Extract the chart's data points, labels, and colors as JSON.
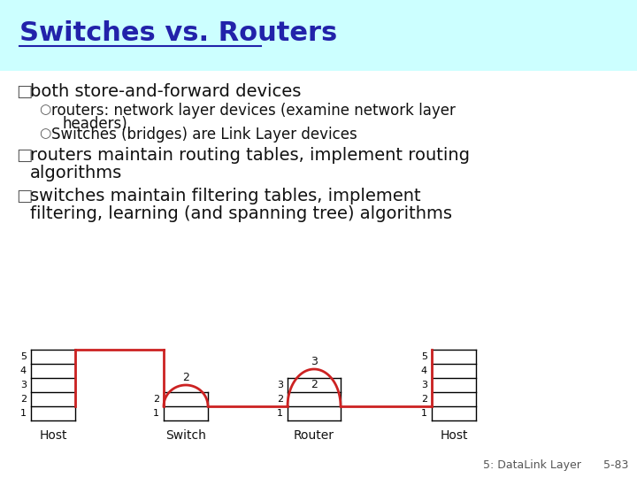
{
  "title": "Switches vs. Routers",
  "title_color": "#2222AA",
  "title_bg_color": "#CCFFFF",
  "bg_color": "#FFFFFF",
  "text_color": "#111111",
  "bullet_color": "#555555",
  "bullet1": "both store-and-forward devices",
  "sub1a": "routers: network layer devices (examine network layer",
  "sub1b": "        headers)",
  "sub2": "Switches (bridges) are Link Layer devices",
  "bullet2a": "routers maintain routing tables, implement routing",
  "bullet2b": "algorithms",
  "bullet3a": "switches maintain filtering tables, implement",
  "bullet3b": "filtering, learning (and spanning tree) algorithms",
  "footer_left": "5: DataLink Layer",
  "footer_right": "5-83",
  "red_color": "#CC2222",
  "black_color": "#000000",
  "title_font_size": 22,
  "body_font_size": 14,
  "sub_font_size": 12,
  "footer_font_size": 9
}
